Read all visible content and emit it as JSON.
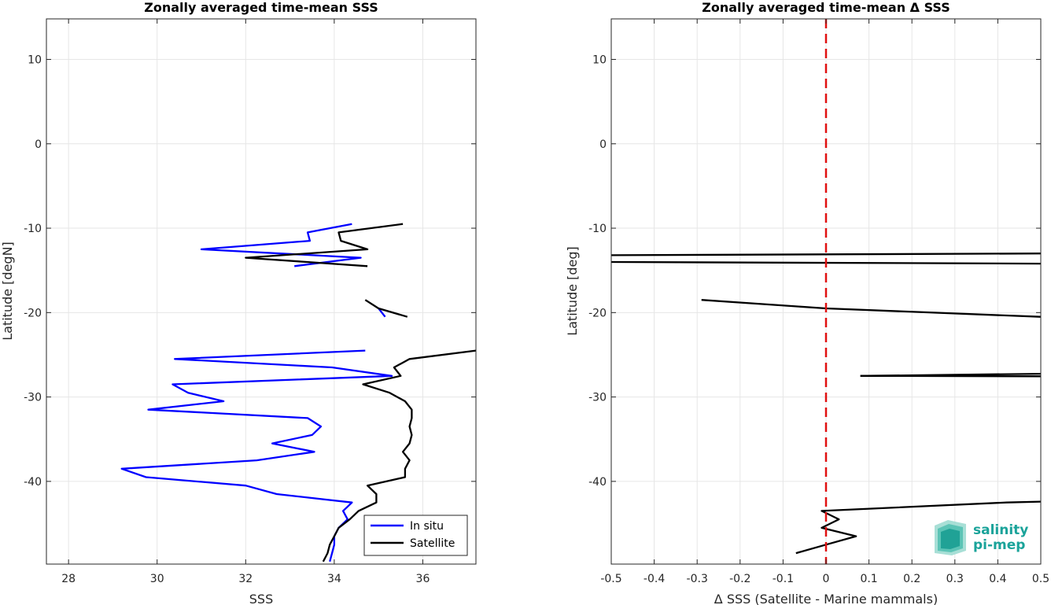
{
  "chart_data": [
    {
      "type": "line",
      "title": "Zonally averaged time-mean SSS",
      "xlabel": "SSS",
      "ylabel": "Latitude [degN]",
      "xlim": [
        27.5,
        37.2
      ],
      "ylim": [
        -49.8,
        14.8
      ],
      "xticks": [
        28,
        30,
        32,
        34,
        36
      ],
      "yticks": [
        10,
        0,
        -10,
        -20,
        -30,
        -40
      ],
      "grid": true,
      "legend_position": "bottom-right",
      "series": [
        {
          "name": "In situ",
          "color": "#0000ff",
          "segments": [
            [
              [
                34.4,
                -9.5
              ],
              [
                33.4,
                -10.5
              ],
              [
                33.45,
                -11.5
              ],
              [
                31.0,
                -12.5
              ],
              [
                34.6,
                -13.5
              ],
              [
                33.1,
                -14.5
              ]
            ],
            [
              [
                35.0,
                -19.5
              ],
              [
                35.15,
                -20.5
              ]
            ],
            [
              [
                34.7,
                -24.5
              ],
              [
                30.4,
                -25.5
              ],
              [
                33.95,
                -26.5
              ],
              [
                35.3,
                -27.5
              ],
              [
                30.35,
                -28.5
              ],
              [
                30.7,
                -29.5
              ],
              [
                31.5,
                -30.5
              ],
              [
                29.8,
                -31.5
              ],
              [
                33.4,
                -32.5
              ],
              [
                33.7,
                -33.5
              ],
              [
                33.5,
                -34.5
              ],
              [
                32.6,
                -35.5
              ],
              [
                33.55,
                -36.5
              ],
              [
                32.25,
                -37.5
              ],
              [
                29.2,
                -38.5
              ],
              [
                29.75,
                -39.5
              ],
              [
                32.0,
                -40.5
              ],
              [
                32.7,
                -41.5
              ],
              [
                34.4,
                -42.5
              ],
              [
                34.2,
                -43.5
              ],
              [
                34.3,
                -44.5
              ],
              [
                34.1,
                -45.5
              ],
              [
                34.0,
                -46.5
              ],
              [
                34.0,
                -47.5
              ],
              [
                33.95,
                -48.5
              ],
              [
                33.9,
                -49.5
              ]
            ]
          ]
        },
        {
          "name": "Satellite",
          "color": "#000000",
          "segments": [
            [
              [
                35.55,
                -9.5
              ],
              [
                34.1,
                -10.5
              ],
              [
                34.15,
                -11.5
              ],
              [
                34.75,
                -12.5
              ],
              [
                32.0,
                -13.5
              ],
              [
                34.75,
                -14.5
              ]
            ],
            [
              [
                34.7,
                -18.5
              ],
              [
                35.0,
                -19.5
              ],
              [
                35.65,
                -20.5
              ]
            ],
            [
              [
                37.2,
                -24.5
              ],
              [
                35.7,
                -25.5
              ],
              [
                35.35,
                -26.5
              ],
              [
                35.5,
                -27.5
              ],
              [
                34.65,
                -28.5
              ],
              [
                35.25,
                -29.5
              ],
              [
                35.6,
                -30.5
              ],
              [
                35.75,
                -31.5
              ],
              [
                35.75,
                -32.5
              ],
              [
                35.7,
                -33.5
              ],
              [
                35.75,
                -34.5
              ],
              [
                35.7,
                -35.5
              ],
              [
                35.55,
                -36.5
              ],
              [
                35.7,
                -37.5
              ],
              [
                35.6,
                -38.5
              ],
              [
                35.6,
                -39.5
              ],
              [
                34.75,
                -40.5
              ],
              [
                34.95,
                -41.5
              ],
              [
                34.95,
                -42.5
              ],
              [
                34.55,
                -43.5
              ],
              [
                34.35,
                -44.5
              ],
              [
                34.1,
                -45.5
              ],
              [
                34.0,
                -46.5
              ],
              [
                33.9,
                -47.5
              ],
              [
                33.85,
                -48.5
              ],
              [
                33.75,
                -49.5
              ]
            ]
          ]
        }
      ]
    },
    {
      "type": "line",
      "title": "Zonally averaged time-mean Δ SSS",
      "xlabel": "Δ SSS (Satellite - Marine mammals)",
      "ylabel": "Latitude [deg]",
      "xlim": [
        -0.5,
        0.5
      ],
      "ylim": [
        -49.8,
        14.8
      ],
      "xticks": [
        -0.5,
        -0.4,
        -0.3,
        -0.2,
        -0.1,
        0,
        0.1,
        0.2,
        0.3,
        0.4,
        0.5
      ],
      "yticks": [
        10,
        0,
        -10,
        -20,
        -30,
        -40
      ],
      "grid": true,
      "reference_line": {
        "x": 0,
        "color": "#e01010",
        "style": "dashed"
      },
      "series": [
        {
          "name": "",
          "color": "#000000",
          "segments": [
            [
              [
                -0.5,
                -13.2
              ],
              [
                0.5,
                -13.0
              ]
            ],
            [
              [
                -0.5,
                -14.0
              ],
              [
                0.5,
                -14.2
              ]
            ],
            [
              [
                -0.29,
                -18.5
              ],
              [
                0.0,
                -19.5
              ],
              [
                0.5,
                -20.5
              ]
            ],
            [
              [
                0.08,
                -27.5
              ],
              [
                0.5,
                -27.25
              ]
            ],
            [
              [
                0.08,
                -27.5
              ],
              [
                0.5,
                -27.55
              ]
            ],
            [
              [
                0.5,
                -42.4
              ],
              [
                0.42,
                -42.5
              ],
              [
                -0.01,
                -43.5
              ],
              [
                0.03,
                -44.5
              ],
              [
                -0.01,
                -45.5
              ],
              [
                0.07,
                -46.5
              ],
              [
                0.0,
                -47.5
              ],
              [
                -0.07,
                -48.5
              ]
            ]
          ]
        }
      ]
    }
  ],
  "legend": {
    "items": [
      {
        "label": "In situ",
        "color": "#0000ff"
      },
      {
        "label": "Satellite",
        "color": "#000000"
      }
    ]
  },
  "logo": {
    "line1": "salinity",
    "line2": "pi-mep",
    "color": "#1aa39a"
  }
}
